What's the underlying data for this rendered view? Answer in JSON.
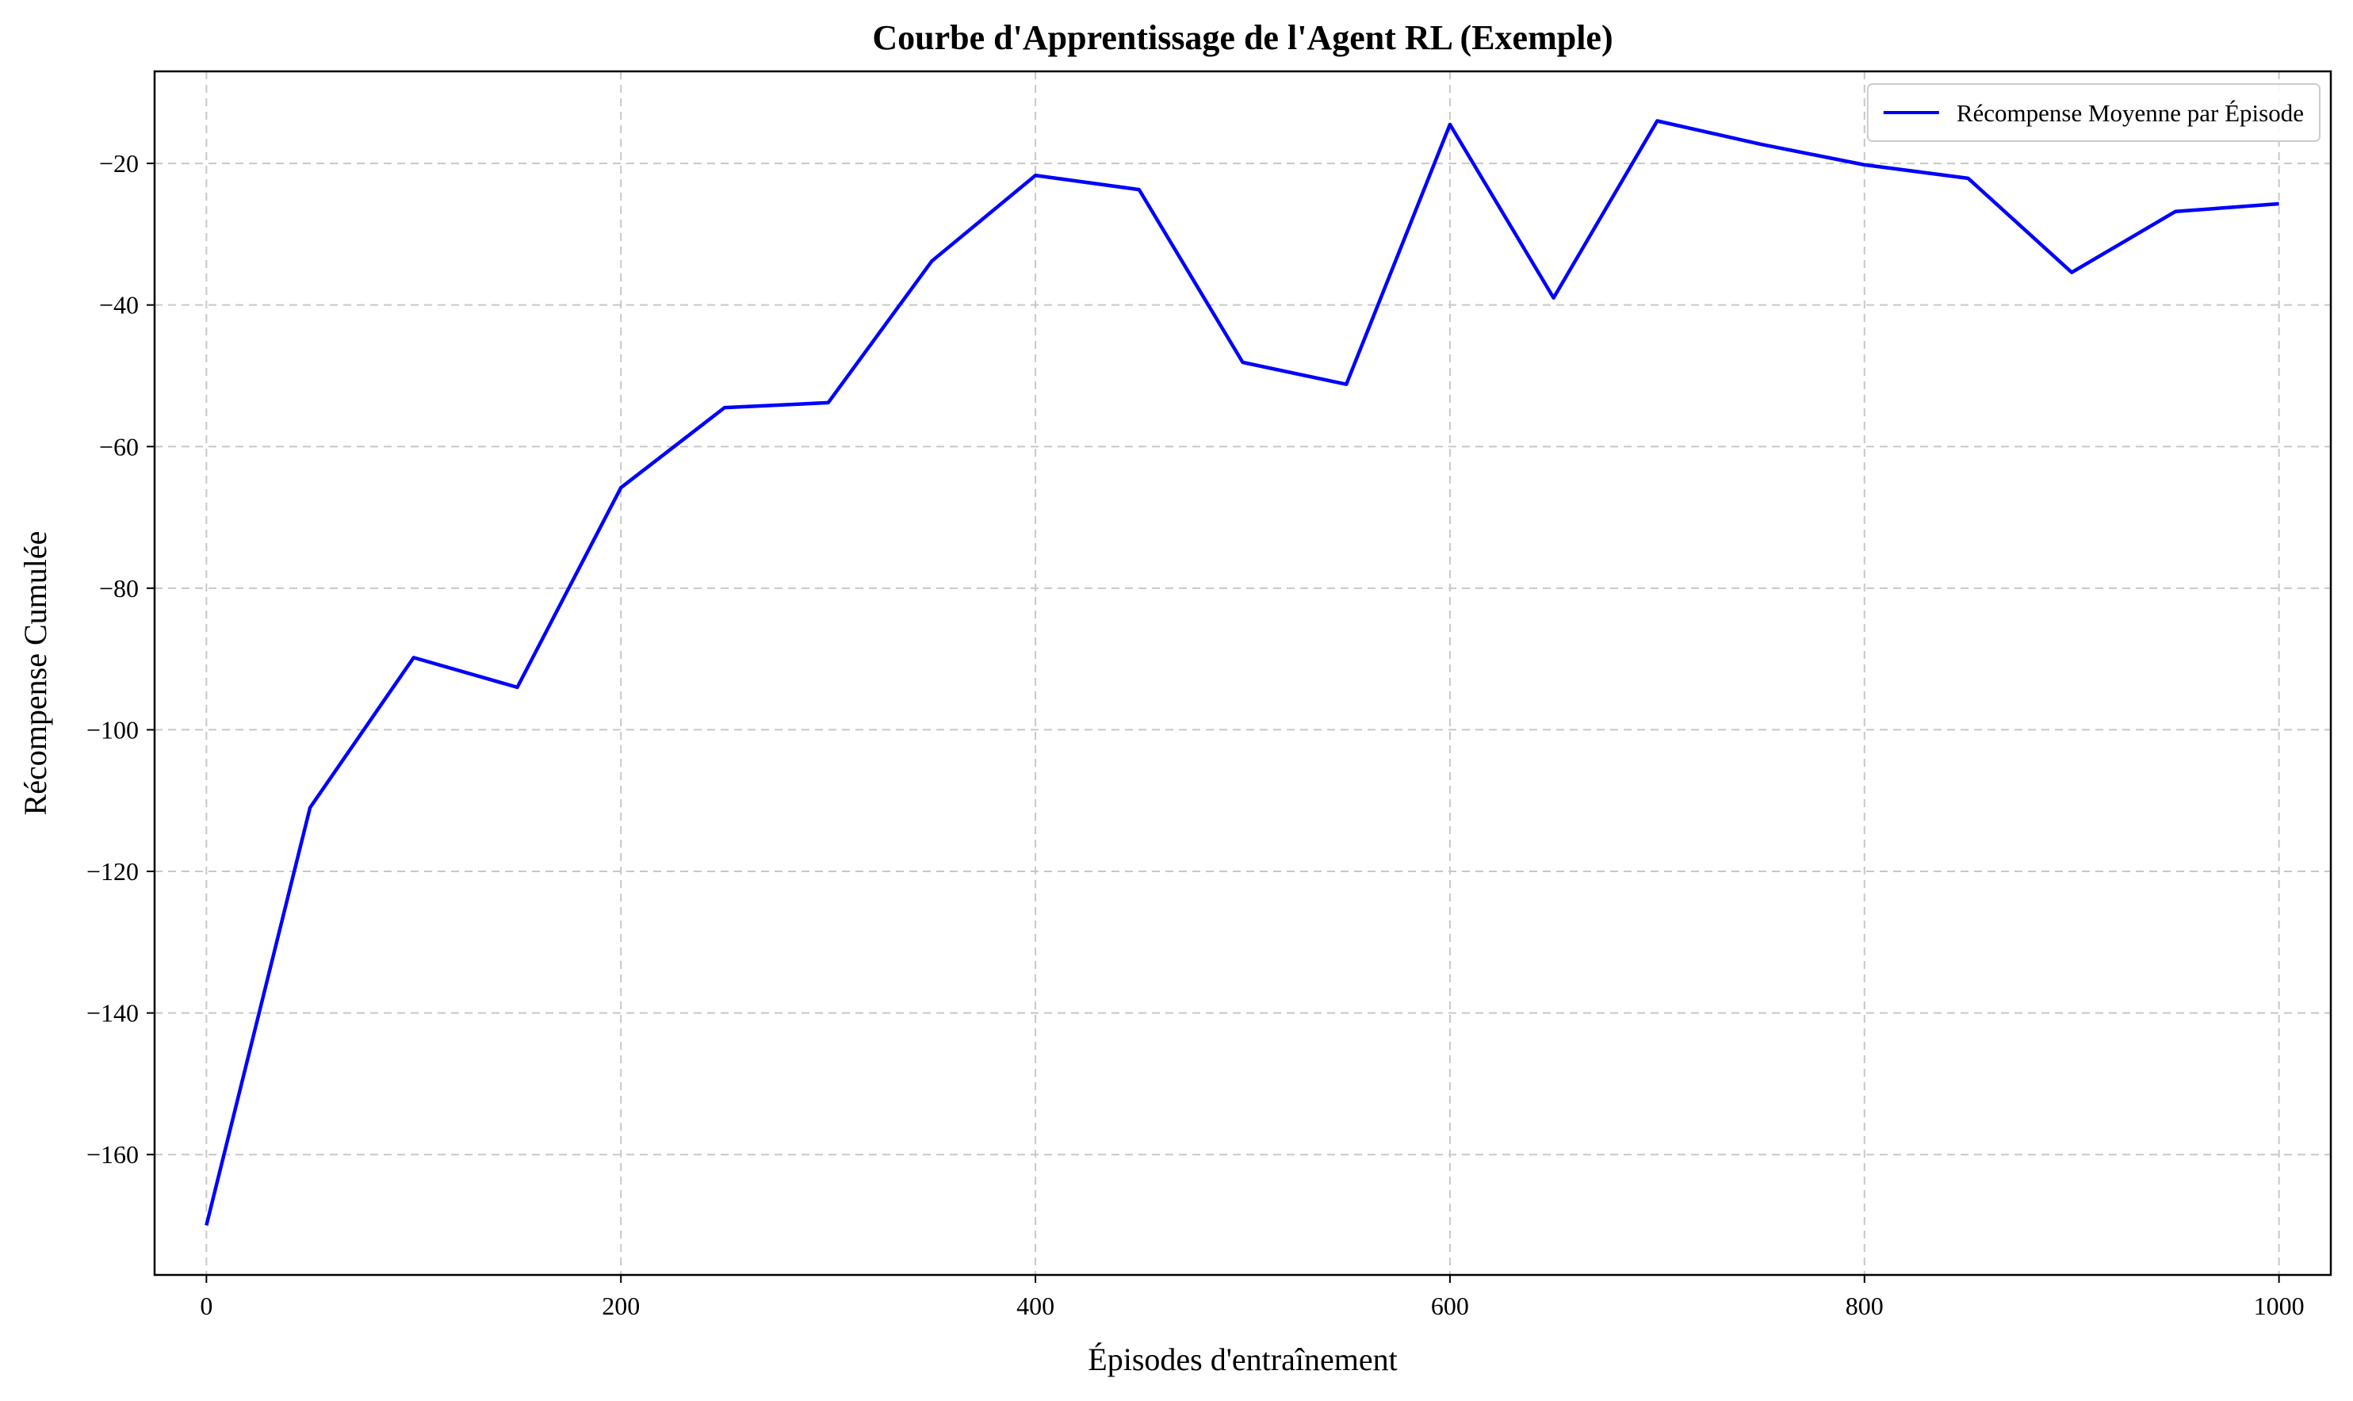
{
  "chart_data": {
    "type": "line",
    "title": "Courbe d'Apprentissage de l'Agent RL (Exemple)",
    "xlabel": "Épisodes d'entraînement",
    "ylabel": "Récompense Cumulée",
    "xlim": [
      -25,
      1025
    ],
    "ylim": [
      -177,
      -7
    ],
    "xticks": [
      0,
      200,
      400,
      600,
      800,
      1000
    ],
    "yticks": [
      -160,
      -140,
      -120,
      -100,
      -80,
      -60,
      -40,
      -20
    ],
    "xtick_labels": [
      "0",
      "200",
      "400",
      "600",
      "800",
      "1000"
    ],
    "ytick_labels": [
      "−160",
      "−140",
      "−120",
      "−100",
      "−80",
      "−60",
      "−40",
      "−20"
    ],
    "grid": true,
    "legend_position": "top-right",
    "series": [
      {
        "name": "Récompense Moyenne par Épisode",
        "color": "#0000ff",
        "x": [
          0,
          50,
          100,
          150,
          200,
          250,
          300,
          350,
          400,
          450,
          500,
          550,
          600,
          650,
          700,
          750,
          800,
          850,
          900,
          950,
          1000
        ],
        "y": [
          -170,
          -111,
          -89.8,
          -94,
          -65.8,
          -54.5,
          -53.8,
          -33.8,
          -21.7,
          -23.7,
          -48.1,
          -51.2,
          -14.5,
          -39,
          -14,
          -17.3,
          -20.2,
          -22.1,
          -35.4,
          -26.8,
          -25.7
        ]
      }
    ]
  }
}
